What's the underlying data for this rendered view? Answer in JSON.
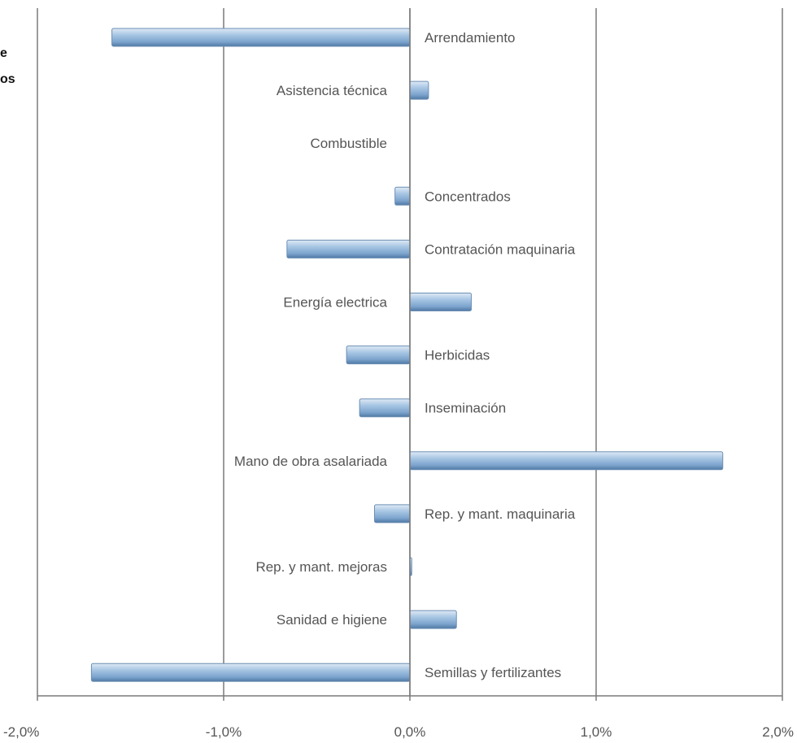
{
  "fragments": [
    "e",
    "os"
  ],
  "chart_data": {
    "type": "bar",
    "orientation": "horizontal",
    "title": "",
    "xlabel": "",
    "ylabel": "",
    "categories": [
      "Arrendamiento",
      "Asistencia técnica",
      "Combustible",
      "Concentrados",
      "Contratación maquinaria",
      "Energía electrica",
      "Herbicidas",
      "Inseminación",
      "Mano de obra asalariada",
      "Rep. y mant. maquinaria",
      "Rep. y mant. mejoras",
      "Sanidad e higiene",
      "Semillas y fertilizantes"
    ],
    "values": [
      -1.6,
      0.1,
      0.0,
      -0.08,
      -0.66,
      0.33,
      -0.34,
      -0.27,
      1.68,
      -0.19,
      0.01,
      0.25,
      -1.71
    ],
    "xlim": [
      -2.0,
      2.0
    ],
    "xticks": [
      -2.0,
      -1.0,
      0.0,
      1.0,
      2.0
    ],
    "xtick_labels": [
      "-2,0%",
      "-1,0%",
      "0,0%",
      "1,0%",
      "2,0%"
    ],
    "grid": "vertical",
    "legend": "none",
    "colors": {
      "bar_light": "#c9def0",
      "bar_mid": "#8fb4d8",
      "bar_dark": "#5b86b3",
      "bar_edge": "#6c8fb4",
      "grid": "#7a7a7a",
      "label": "#555555"
    }
  }
}
